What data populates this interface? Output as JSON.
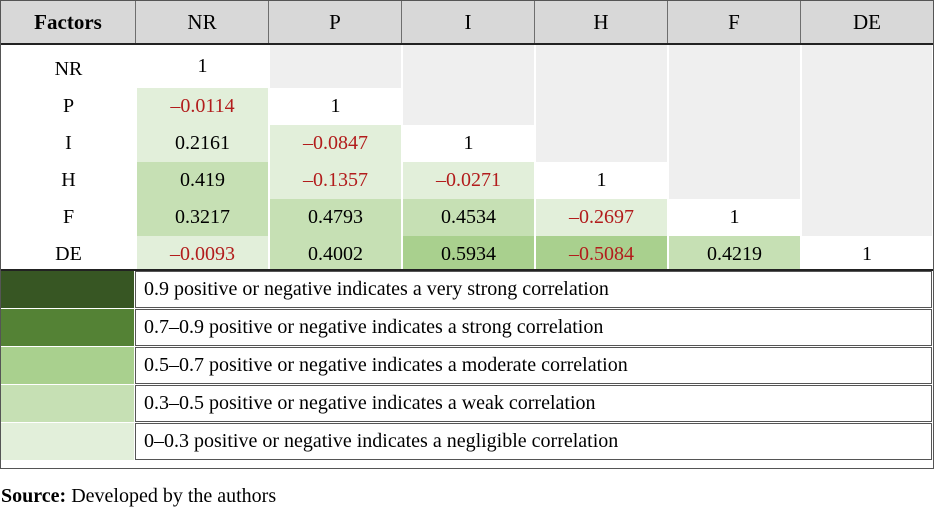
{
  "table": {
    "headers": [
      "Factors",
      "NR",
      "P",
      "I",
      "H",
      "F",
      "DE"
    ],
    "rows": [
      {
        "label": "NR",
        "values": [
          "1",
          "",
          "",
          "",
          "",
          ""
        ]
      },
      {
        "label": "P",
        "values": [
          "–0.0114",
          "1",
          "",
          "",
          "",
          ""
        ]
      },
      {
        "label": "I",
        "values": [
          "0.2161",
          "–0.0847",
          "1",
          "",
          "",
          ""
        ]
      },
      {
        "label": "H",
        "values": [
          "0.419",
          "–0.1357",
          "–0.0271",
          "1",
          "",
          ""
        ]
      },
      {
        "label": "F",
        "values": [
          "0.3217",
          "0.4793",
          "0.4534",
          "–0.2697",
          "1",
          ""
        ]
      },
      {
        "label": "DE",
        "values": [
          "–0.0093",
          "0.4002",
          "0.5934",
          "–0.5084",
          "0.4219",
          "1"
        ]
      }
    ],
    "negative_color": "#b21c1c",
    "empty_color": "#efefef"
  },
  "legend": [
    {
      "color": "#375623",
      "text": "0.9 positive or negative indicates a very strong correlation"
    },
    {
      "color": "#548235",
      "text": "0.7–0.9 positive or negative indicates a strong correlation"
    },
    {
      "color": "#a9d08e",
      "text": "0.5–0.7 positive or negative indicates a moderate correlation"
    },
    {
      "color": "#c6e0b4",
      "text": "0.3–0.5 positive or negative indicates a weak correlation"
    },
    {
      "color": "#e2efda",
      "text": "0–0.3 positive or negative indicates a negligible correlation"
    }
  ],
  "source": {
    "label": "Source:",
    "text": " Developed by the authors"
  }
}
